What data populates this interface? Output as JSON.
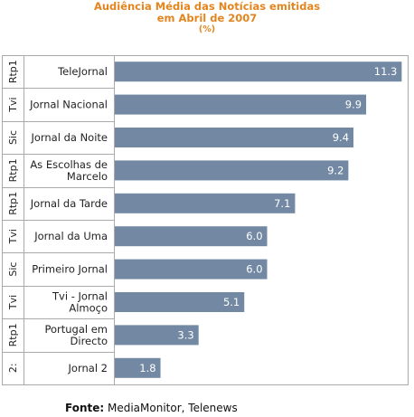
{
  "chart_data": {
    "type": "bar",
    "orientation": "horizontal",
    "title_lines": [
      "Audiência Média das Notícias emitidas",
      "em Abril de 2007"
    ],
    "subtitle": "(%)",
    "categories": [
      {
        "channel": "Rtp1",
        "label": [
          "TeleJornal"
        ],
        "value": 11.3,
        "value_label": "11.3"
      },
      {
        "channel": "Tvi",
        "label": [
          "Jornal Nacional"
        ],
        "value": 9.9,
        "value_label": "9.9"
      },
      {
        "channel": "Sic",
        "label": [
          "Jornal da Noite"
        ],
        "value": 9.4,
        "value_label": "9.4"
      },
      {
        "channel": "Rtp1",
        "label": [
          "As Escolhas de",
          "Marcelo"
        ],
        "value": 9.2,
        "value_label": "9.2"
      },
      {
        "channel": "Rtp1",
        "label": [
          "Jornal da Tarde"
        ],
        "value": 7.1,
        "value_label": "7.1"
      },
      {
        "channel": "Tvi",
        "label": [
          "Jornal da Uma"
        ],
        "value": 6.0,
        "value_label": "6.0"
      },
      {
        "channel": "Sic",
        "label": [
          "Primeiro Jornal"
        ],
        "value": 6.0,
        "value_label": "6.0"
      },
      {
        "channel": "Tvi",
        "label": [
          "Tvi - Jornal",
          "Almoço"
        ],
        "value": 5.1,
        "value_label": "5.1"
      },
      {
        "channel": "Rtp1",
        "label": [
          "Portugal em",
          "Directo"
        ],
        "value": 3.3,
        "value_label": "3.3"
      },
      {
        "channel": "2:",
        "label": [
          "Jornal 2"
        ],
        "value": 1.8,
        "value_label": "1.8"
      }
    ],
    "xlim": [
      0,
      11.5
    ],
    "grid": false,
    "legend": "none",
    "colors": {
      "bar": "#7389a3",
      "title": "#e3851f",
      "border": "#aaaaaa",
      "text": "#222222",
      "value_label": "#ffffff"
    }
  },
  "source": {
    "label": "Fonte:",
    "text": " MediaMonitor, Telenews"
  }
}
